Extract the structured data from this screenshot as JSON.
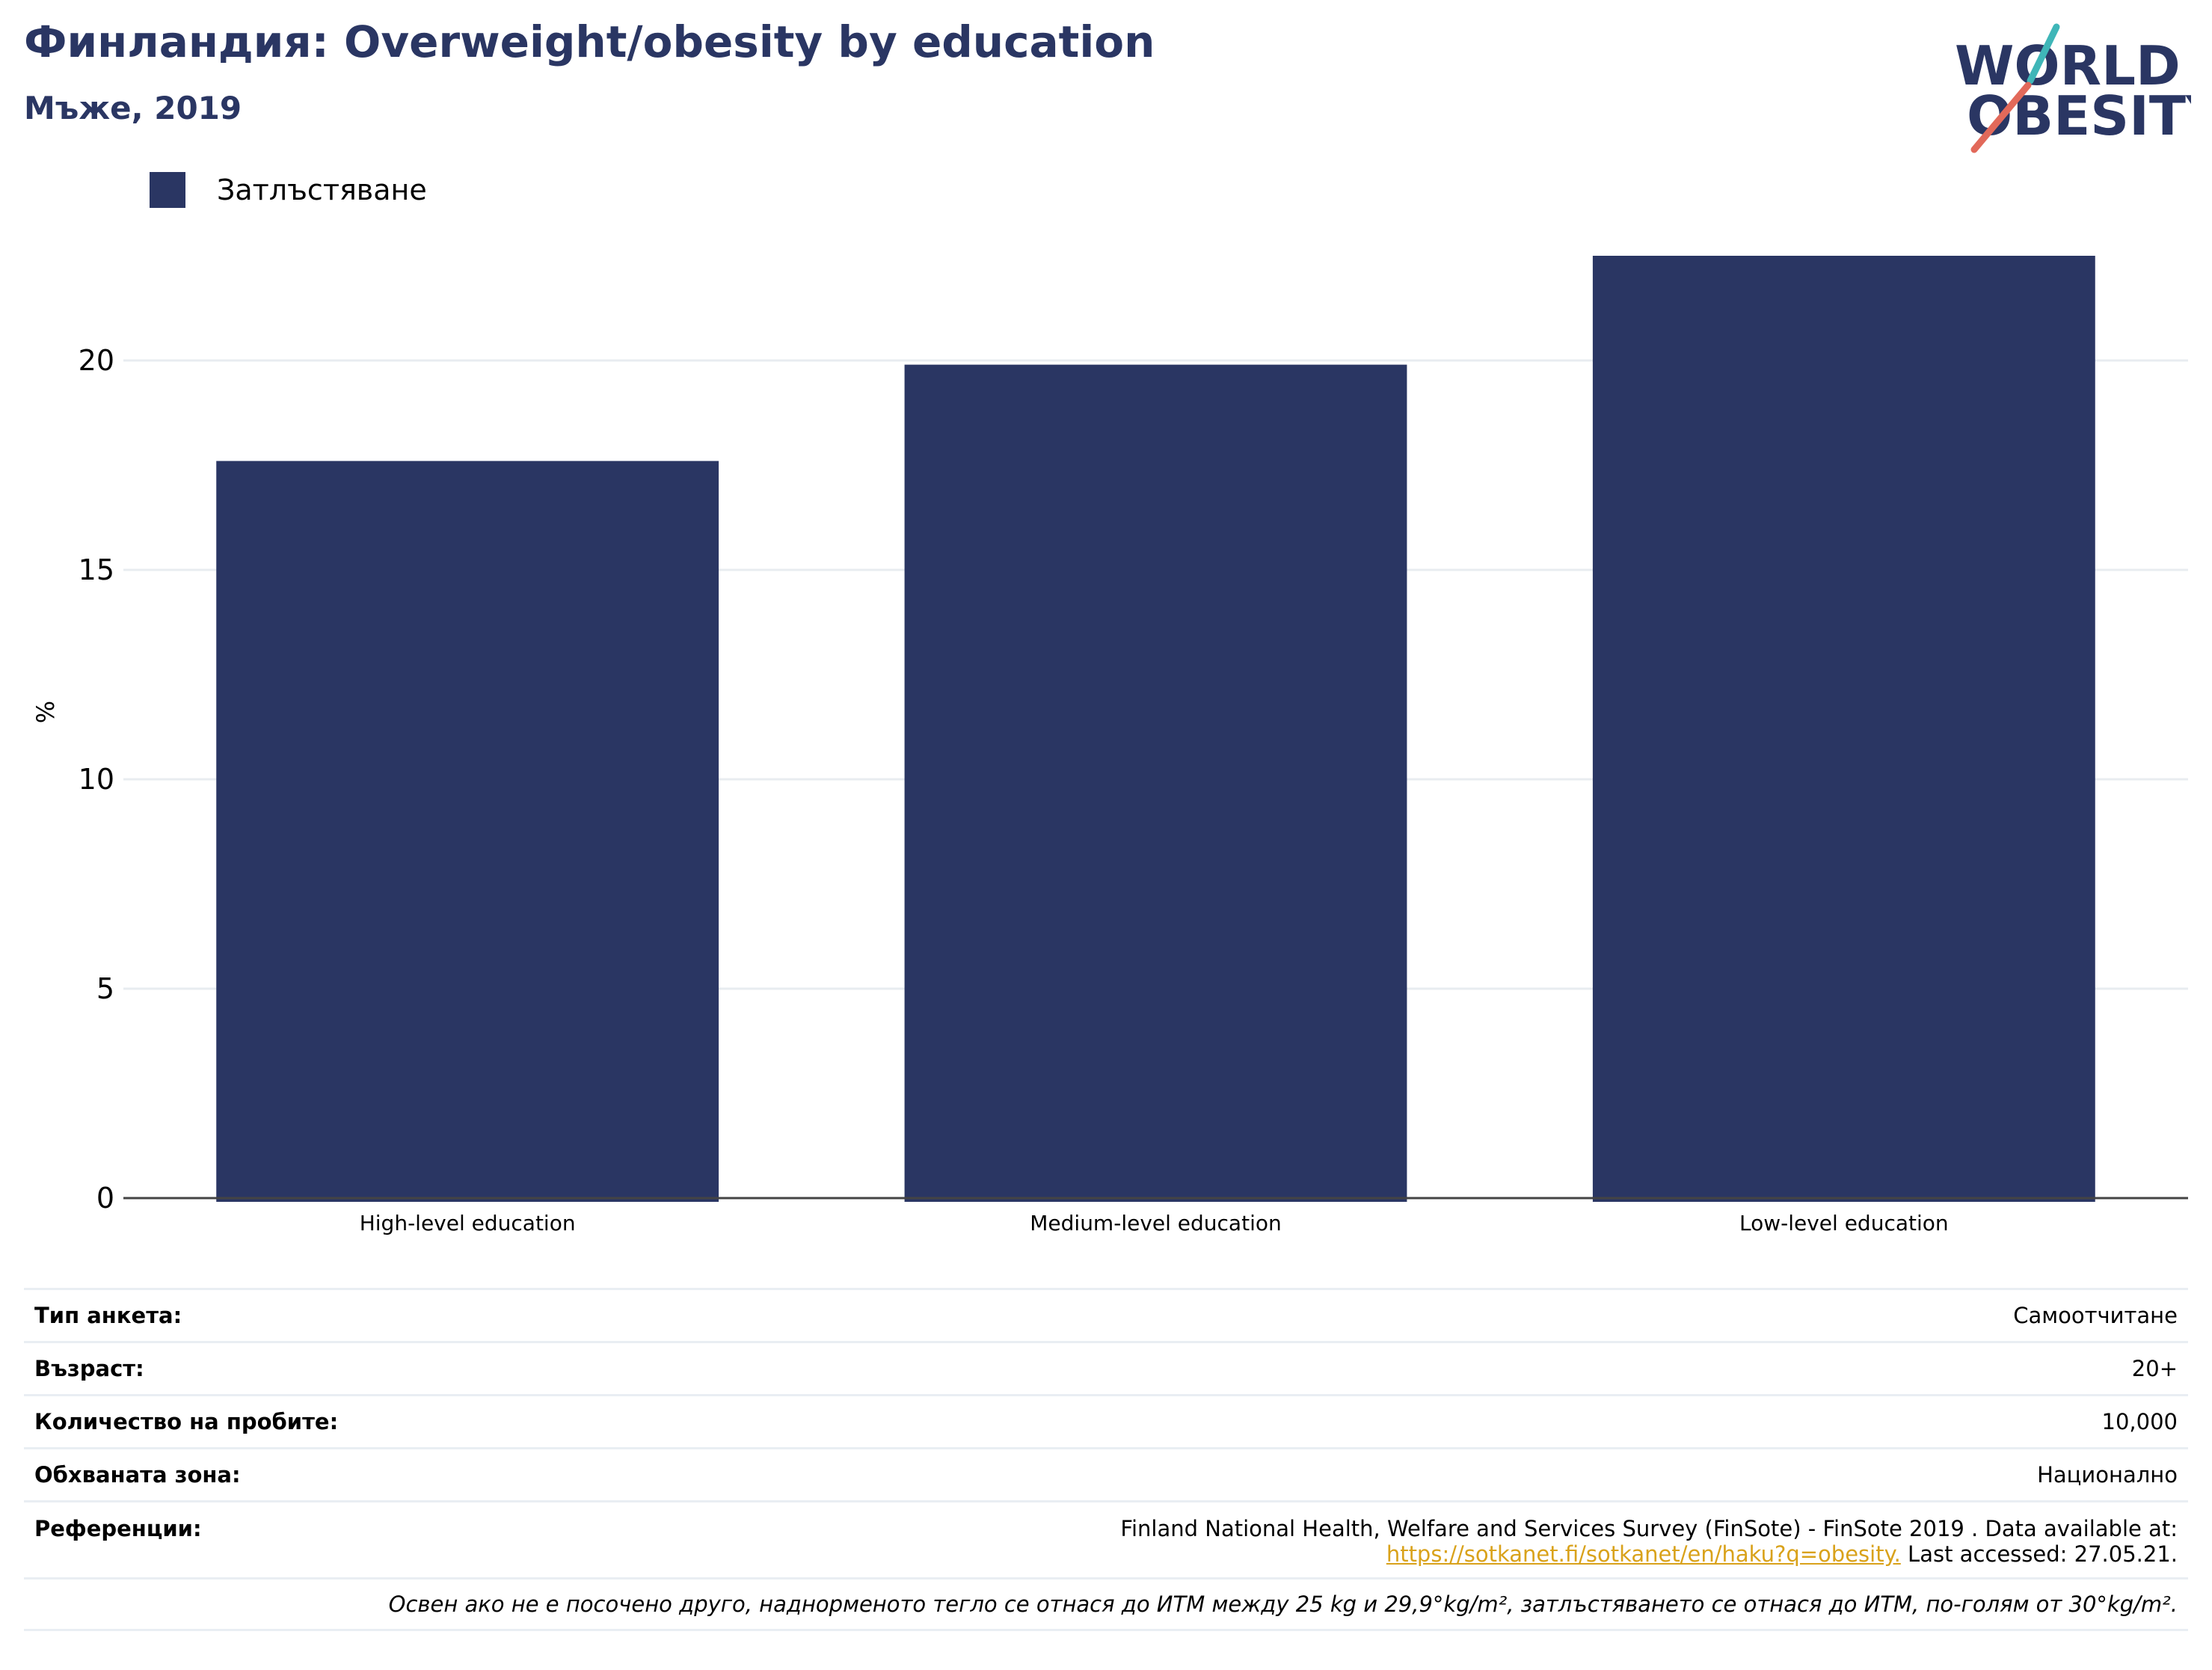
{
  "header": {
    "title": "Финландия: Overweight/obesity by education",
    "subtitle": "Мъже, 2019"
  },
  "logo": {
    "line1": "WORLD",
    "line2": "OBESITY"
  },
  "colors": {
    "bar": "#2a3663",
    "title": "#2a3663",
    "grid": "#e8ecf0",
    "link": "#d9a21b"
  },
  "chart_data": {
    "type": "bar",
    "categories": [
      "High-level education",
      "Medium-level education",
      "Low-level education"
    ],
    "series": [
      {
        "name": "Затлъстяване",
        "values": [
          17.6,
          19.9,
          22.5
        ]
      }
    ],
    "title": "Финландия: Overweight/obesity by education",
    "subtitle": "Мъже, 2019",
    "xlabel": "",
    "ylabel": "%",
    "ylim": [
      0,
      25
    ],
    "yticks": [
      0,
      5,
      10,
      15,
      20
    ],
    "grid": true,
    "legend": "top-left"
  },
  "info": {
    "survey_type": {
      "label": "Тип анкета:",
      "value": "Самоотчитане"
    },
    "age": {
      "label": "Възраст:",
      "value": "20+"
    },
    "sample_size": {
      "label": "Количество на пробите:",
      "value": "10,000"
    },
    "area": {
      "label": "Обхваната зона:",
      "value": "Национално"
    },
    "references": {
      "label": "Референции:",
      "line1": "Finland National Health, Welfare and Services Survey (FinSote) - FinSote 2019 . Data available at:",
      "link": "https://sotkanet.fi/sotkanet/en/haku?q=obesity.",
      "after_link": " Last accessed: 27.05.21."
    },
    "note": "Освен ако не е посочено друго, наднорменото тегло се отнася до ИТМ между 25 kg и 29,9°kg/m², затлъстяването се отнася до ИТМ, по-голям от 30°kg/m²."
  }
}
